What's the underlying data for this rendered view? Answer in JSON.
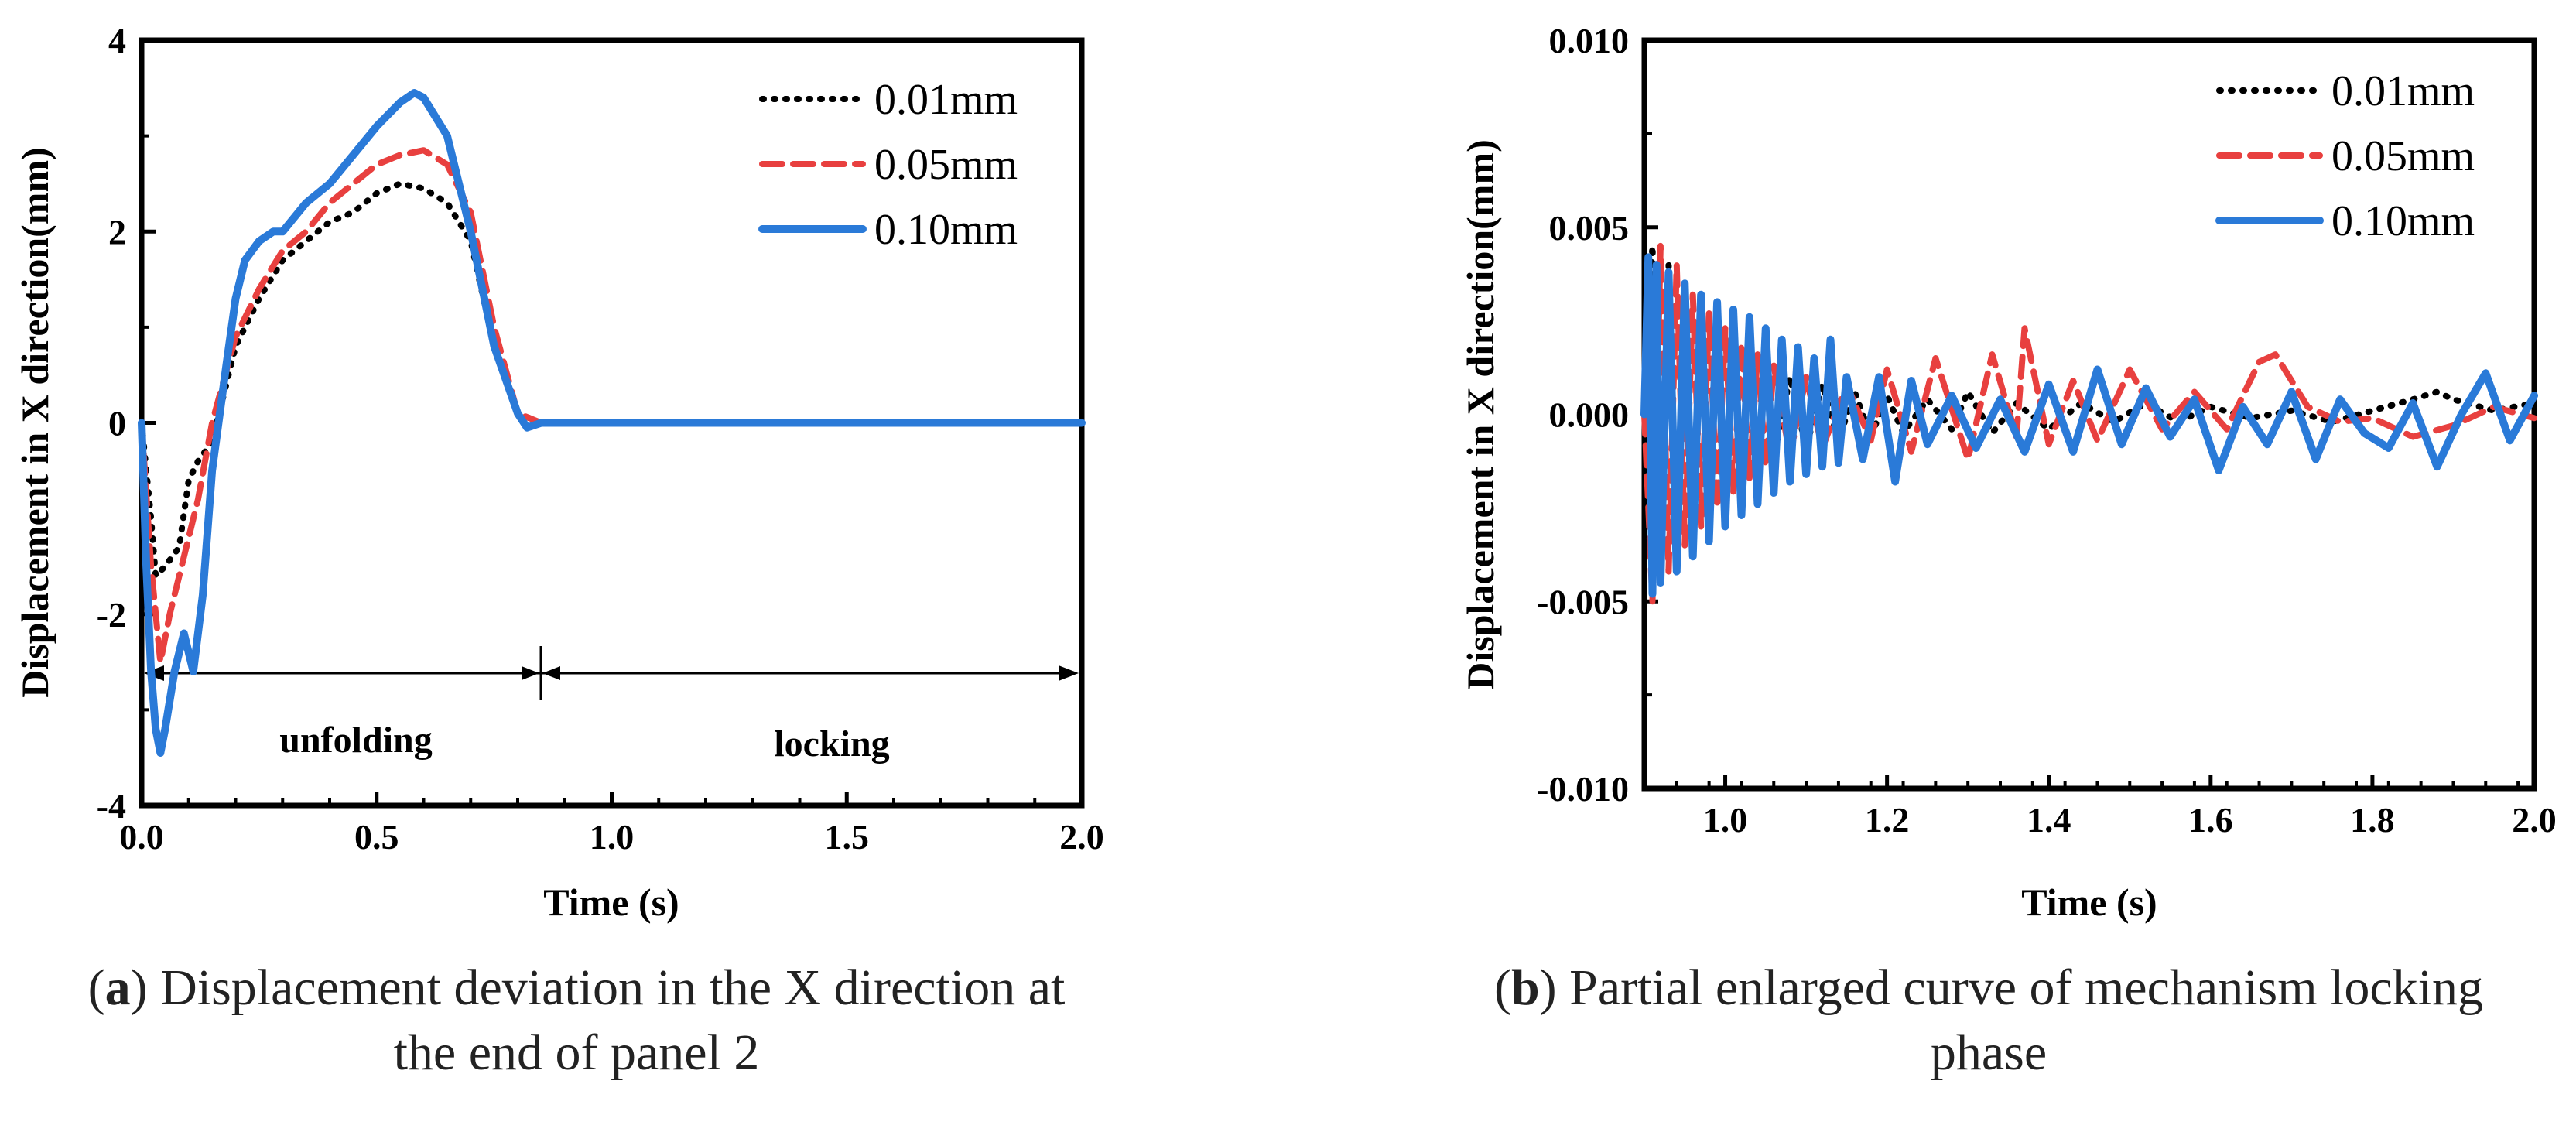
{
  "captions": {
    "a_letter": "a",
    "a_text": "Displacement deviation in the X direction at the end of panel 2",
    "b_letter": "b",
    "b_text": "Partial enlarged curve of mechanism locking phase"
  },
  "legend": [
    "0.01mm",
    "0.05mm",
    "0.10mm"
  ],
  "colors": {
    "0.01mm": "#000000",
    "0.05mm": "#e8403f",
    "0.10mm": "#2a7ad8"
  },
  "chart_data": [
    {
      "type": "line",
      "panel": "a",
      "xlabel": "Time (s)",
      "ylabel": "Displacement in X direction(mm)",
      "xlim": [
        0.0,
        2.0
      ],
      "ylim": [
        -4,
        4
      ],
      "xticks": [
        "0.0",
        "0.5",
        "1.0",
        "1.5",
        "2.0"
      ],
      "yticks": [
        "-4",
        "-2",
        "0",
        "2",
        "4"
      ],
      "legend_position": "top-right",
      "annotations": {
        "phase_1": "unfolding",
        "phase_2": "locking",
        "phase_boundary_time": 0.85,
        "arrow_level": -2.6
      },
      "series": [
        {
          "name": "0.01mm",
          "style": "dotted",
          "x": [
            0.0,
            0.02,
            0.03,
            0.05,
            0.08,
            0.1,
            0.12,
            0.15,
            0.2,
            0.25,
            0.3,
            0.35,
            0.4,
            0.45,
            0.5,
            0.55,
            0.6,
            0.65,
            0.7,
            0.75,
            0.8,
            0.85,
            0.9,
            1.0,
            1.5,
            2.0
          ],
          "y": [
            0.0,
            -1.0,
            -1.6,
            -1.5,
            -1.3,
            -0.6,
            -0.4,
            -0.2,
            0.8,
            1.3,
            1.7,
            1.9,
            2.1,
            2.2,
            2.4,
            2.5,
            2.45,
            2.3,
            1.9,
            0.8,
            0.1,
            0.0,
            0.0,
            0.0,
            0.0,
            0.0
          ]
        },
        {
          "name": "0.05mm",
          "style": "dashed",
          "x": [
            0.0,
            0.02,
            0.04,
            0.06,
            0.08,
            0.1,
            0.12,
            0.15,
            0.2,
            0.25,
            0.3,
            0.35,
            0.4,
            0.45,
            0.5,
            0.55,
            0.6,
            0.65,
            0.7,
            0.75,
            0.8,
            0.85,
            0.9,
            1.0,
            1.5,
            2.0
          ],
          "y": [
            0.0,
            -1.5,
            -2.5,
            -2.0,
            -1.6,
            -1.2,
            -0.8,
            0.0,
            0.9,
            1.4,
            1.8,
            2.0,
            2.3,
            2.5,
            2.7,
            2.8,
            2.85,
            2.7,
            2.2,
            1.0,
            0.1,
            0.0,
            0.0,
            0.0,
            0.0,
            0.0
          ]
        },
        {
          "name": "0.10mm",
          "style": "solid",
          "x": [
            0.0,
            0.01,
            0.02,
            0.03,
            0.04,
            0.05,
            0.07,
            0.09,
            0.11,
            0.13,
            0.15,
            0.18,
            0.2,
            0.22,
            0.25,
            0.28,
            0.3,
            0.35,
            0.4,
            0.45,
            0.5,
            0.55,
            0.58,
            0.6,
            0.65,
            0.7,
            0.75,
            0.8,
            0.82,
            0.85,
            0.9,
            1.0,
            1.5,
            2.0
          ],
          "y": [
            0.0,
            -1.5,
            -2.6,
            -3.2,
            -3.45,
            -3.2,
            -2.6,
            -2.2,
            -2.6,
            -1.8,
            -0.5,
            0.6,
            1.3,
            1.7,
            1.9,
            2.0,
            2.0,
            2.3,
            2.5,
            2.8,
            3.1,
            3.35,
            3.45,
            3.4,
            3.0,
            2.0,
            0.8,
            0.1,
            -0.05,
            0.0,
            0.0,
            0.0,
            0.0,
            0.0
          ]
        }
      ]
    },
    {
      "type": "line",
      "panel": "b",
      "xlabel": "Time (s)",
      "ylabel": "Displacement in X direction(mm)",
      "xlim": [
        0.9,
        2.0
      ],
      "ylim": [
        -0.01,
        0.01
      ],
      "xticks": [
        "1.0",
        "1.2",
        "1.4",
        "1.6",
        "1.8",
        "2.0"
      ],
      "yticks": [
        "-0.010",
        "-0.005",
        "0.000",
        "0.005",
        "0.010"
      ],
      "legend_position": "top-right",
      "series": [
        {
          "name": "0.01mm",
          "style": "dotted",
          "x": [
            0.9,
            0.91,
            0.92,
            0.93,
            0.94,
            0.95,
            0.96,
            0.97,
            0.98,
            0.99,
            1.0,
            1.01,
            1.02,
            1.03,
            1.04,
            1.05,
            1.06,
            1.08,
            1.1,
            1.12,
            1.14,
            1.16,
            1.18,
            1.2,
            1.22,
            1.25,
            1.28,
            1.3,
            1.33,
            1.36,
            1.4,
            1.44,
            1.48,
            1.52,
            1.56,
            1.6,
            1.65,
            1.7,
            1.75,
            1.8,
            1.85,
            1.88,
            1.9,
            1.95,
            2.0
          ],
          "y": [
            0.0,
            0.0045,
            -0.0045,
            0.004,
            -0.0038,
            0.0035,
            -0.0032,
            0.003,
            -0.0028,
            0.0025,
            -0.0022,
            0.002,
            -0.0018,
            0.0016,
            -0.0015,
            0.0013,
            -0.0012,
            0.001,
            -0.0009,
            0.0008,
            -0.0007,
            0.0006,
            -0.0006,
            0.0005,
            -0.0005,
            0.0004,
            -0.0004,
            0.0006,
            -0.0005,
            0.0003,
            -0.0004,
            0.0003,
            -0.0002,
            0.0003,
            -0.0002,
            0.0002,
            -0.0001,
            0.0001,
            -0.0002,
            0.0001,
            0.0004,
            0.0006,
            0.0004,
            0.0001,
            0.0003
          ]
        },
        {
          "name": "0.05mm",
          "style": "dashed",
          "x": [
            0.9,
            0.91,
            0.92,
            0.93,
            0.94,
            0.95,
            0.96,
            0.97,
            0.98,
            0.99,
            1.0,
            1.01,
            1.02,
            1.03,
            1.04,
            1.05,
            1.06,
            1.08,
            1.1,
            1.12,
            1.15,
            1.18,
            1.2,
            1.23,
            1.26,
            1.3,
            1.33,
            1.36,
            1.37,
            1.4,
            1.43,
            1.46,
            1.5,
            1.54,
            1.58,
            1.62,
            1.66,
            1.68,
            1.72,
            1.76,
            1.8,
            1.85,
            1.9,
            1.95,
            2.0
          ],
          "y": [
            0.0,
            -0.005,
            0.0045,
            -0.0042,
            0.004,
            -0.0035,
            0.0032,
            -0.003,
            0.0027,
            -0.0025,
            0.0023,
            -0.0021,
            0.0019,
            -0.0017,
            0.0016,
            -0.0014,
            0.0013,
            -0.0011,
            0.001,
            -0.0009,
            0.0008,
            -0.0007,
            0.0012,
            -0.001,
            0.0015,
            -0.0012,
            0.0016,
            -0.0006,
            0.0023,
            -0.0008,
            0.0009,
            -0.0007,
            0.0012,
            -0.0004,
            0.0006,
            -0.0004,
            0.0014,
            0.0016,
            0.0002,
            -0.0002,
            -0.0001,
            -0.0006,
            -0.0003,
            0.0002,
            -0.0001
          ]
        },
        {
          "name": "0.10mm",
          "style": "solid",
          "x": [
            0.9,
            0.905,
            0.91,
            0.915,
            0.92,
            0.93,
            0.94,
            0.95,
            0.96,
            0.97,
            0.98,
            0.99,
            1.0,
            1.01,
            1.02,
            1.03,
            1.04,
            1.05,
            1.06,
            1.07,
            1.08,
            1.09,
            1.1,
            1.11,
            1.12,
            1.13,
            1.14,
            1.15,
            1.17,
            1.19,
            1.21,
            1.23,
            1.25,
            1.28,
            1.31,
            1.34,
            1.37,
            1.4,
            1.43,
            1.46,
            1.49,
            1.52,
            1.55,
            1.58,
            1.61,
            1.64,
            1.67,
            1.7,
            1.73,
            1.76,
            1.79,
            1.82,
            1.85,
            1.88,
            1.91,
            1.94,
            1.97,
            2.0
          ],
          "y": [
            0.0,
            0.0042,
            -0.0048,
            0.004,
            -0.0045,
            0.0038,
            -0.0042,
            0.0035,
            -0.0038,
            0.0032,
            -0.0034,
            0.003,
            -0.003,
            0.0028,
            -0.0027,
            0.0026,
            -0.0024,
            0.0023,
            -0.0021,
            0.002,
            -0.0018,
            0.0018,
            -0.0016,
            0.0015,
            -0.0014,
            0.002,
            -0.0013,
            0.001,
            -0.0012,
            0.001,
            -0.0018,
            0.0009,
            -0.0008,
            0.0005,
            -0.0009,
            0.0004,
            -0.001,
            0.0008,
            -0.001,
            0.0012,
            -0.0008,
            0.0007,
            -0.0006,
            0.0004,
            -0.0015,
            0.0002,
            -0.0008,
            0.0006,
            -0.0012,
            0.0004,
            -0.0005,
            -0.0009,
            0.0003,
            -0.0014,
            0.0,
            0.0011,
            -0.0007,
            0.0005
          ]
        }
      ]
    }
  ]
}
